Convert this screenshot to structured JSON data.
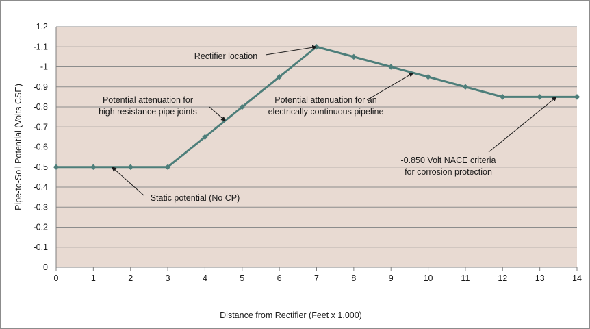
{
  "chart_data": {
    "type": "line",
    "title": "",
    "xlabel": "Distance from Rectifier (Feet x 1,000)",
    "ylabel": "Pipe-to-Soil Potential (Volts CSE)",
    "xlim": [
      0,
      14
    ],
    "ylim": [
      0,
      -1.2
    ],
    "y_axis_reversed": true,
    "grid": "horizontal",
    "x_ticks": [
      "0",
      "1",
      "2",
      "3",
      "4",
      "5",
      "6",
      "7",
      "8",
      "9",
      "10",
      "11",
      "12",
      "13",
      "14"
    ],
    "y_ticks": [
      "0",
      "-0.1",
      "-0.2",
      "-0.3",
      "-0.4",
      "-0.5",
      "-0.6",
      "-0.7",
      "-0.8",
      "-0.9",
      "-1",
      "-1.1",
      "-1.2"
    ],
    "series": [
      {
        "x": [
          0,
          1,
          2,
          3,
          4,
          5,
          6,
          7,
          8,
          9,
          10,
          11,
          12,
          13,
          14
        ],
        "y": [
          -0.5,
          -0.5,
          -0.5,
          -0.5,
          -0.65,
          -0.8,
          -0.95,
          -1.1,
          -1.05,
          -1.0,
          -0.95,
          -0.9,
          -0.85,
          -0.85,
          -0.85
        ]
      }
    ],
    "annotations": [
      {
        "lines": [
          "Rectifier location"
        ],
        "target": [
          7,
          -1.1
        ]
      },
      {
        "lines": [
          "Potential attenuation for",
          "high resistance pipe joints"
        ],
        "target": [
          4.55,
          -0.73
        ]
      },
      {
        "lines": [
          "Potential attenuation for an",
          "electrically continuous pipeline"
        ],
        "target": [
          9.6,
          -0.97
        ]
      },
      {
        "lines": [
          "-0.850 Volt NACE criteria",
          "for corrosion protection"
        ],
        "target": [
          13.45,
          -0.85
        ]
      },
      {
        "lines": [
          "Static potential (No CP)"
        ],
        "target": [
          1.5,
          -0.5
        ]
      }
    ],
    "colors": {
      "plot_bg": "#e8dad2",
      "line": "#4d7e7a",
      "marker": "#4d7e7a",
      "grid": "#8c8c8c"
    }
  }
}
